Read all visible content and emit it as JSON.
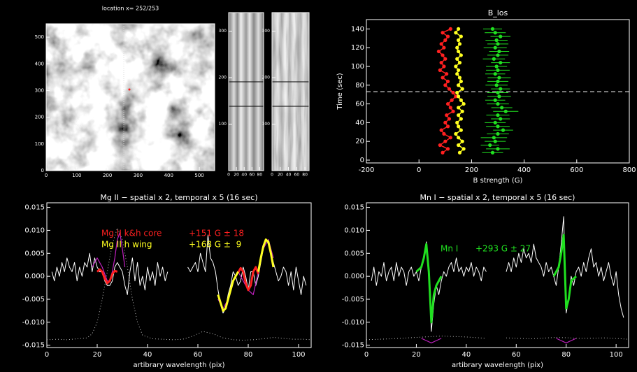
{
  "chart_data": [
    {
      "type": "image",
      "title": "location x= 252/253",
      "xlim": [
        0,
        550
      ],
      "xticks": [
        0,
        100,
        200,
        300,
        400,
        500
      ],
      "ylim": [
        0,
        550
      ],
      "yticks": [
        0,
        100,
        200,
        300,
        400,
        500
      ]
    },
    {
      "type": "image",
      "xlim": [
        0,
        90
      ],
      "xticks": [
        0,
        20,
        40,
        60,
        80
      ],
      "ylim": [
        0,
        340
      ],
      "yticks": [
        100,
        200,
        300
      ]
    },
    {
      "type": "image",
      "xlim": [
        0,
        90
      ],
      "xticks": [
        0,
        20,
        40,
        60,
        80
      ],
      "ylim": [
        0,
        340
      ],
      "yticks": [
        100,
        200,
        300
      ]
    },
    {
      "type": "scatter",
      "title": "B_los",
      "x_label": "B strength (G)",
      "y_label": "Time (sec)",
      "xlim": [
        -200,
        800
      ],
      "xticks": [
        -200,
        0,
        200,
        400,
        600,
        800
      ],
      "ylim": [
        -3,
        150
      ],
      "yticks": [
        0,
        20,
        40,
        60,
        80,
        100,
        120,
        140
      ],
      "marker_time": 73,
      "y": [
        8,
        12,
        16,
        20,
        24,
        28,
        32,
        36,
        40,
        44,
        48,
        52,
        56,
        60,
        64,
        68,
        72,
        76,
        80,
        84,
        88,
        92,
        96,
        100,
        104,
        108,
        112,
        116,
        120,
        124,
        128,
        132,
        136,
        140
      ],
      "series": [
        {
          "color": "#ff2020",
          "line": true,
          "x": [
            90,
            110,
            80,
            100,
            120,
            95,
            85,
            110,
            100,
            115,
            105,
            130,
            120,
            110,
            125,
            140,
            130,
            115,
            100,
            110,
            90,
            105,
            80,
            95,
            85,
            100,
            90,
            75,
            95,
            85,
            100,
            110,
            90,
            120
          ]
        },
        {
          "color": "#ffff20",
          "line": true,
          "x": [
            155,
            170,
            150,
            165,
            150,
            140,
            160,
            150,
            145,
            160,
            150,
            165,
            150,
            170,
            160,
            150,
            145,
            165,
            150,
            160,
            155,
            145,
            150,
            140,
            155,
            145,
            160,
            150,
            145,
            155,
            150,
            160,
            140,
            150
          ]
        },
        {
          "color": "#20e020",
          "line": false,
          "x": [
            280,
            300,
            270,
            290,
            285,
            300,
            320,
            300,
            290,
            310,
            300,
            330,
            315,
            300,
            290,
            305,
            300,
            310,
            295,
            300,
            305,
            290,
            300,
            295,
            310,
            285,
            300,
            305,
            290,
            300,
            295,
            310,
            290,
            280
          ],
          "xerr": [
            40,
            45,
            35,
            40,
            50,
            42,
            38,
            45,
            40,
            36,
            44,
            48,
            40,
            42,
            38,
            45,
            40,
            36,
            42,
            40,
            44,
            38,
            45,
            40,
            36,
            42,
            40,
            38,
            44,
            40,
            42,
            38,
            40,
            36
          ]
        }
      ]
    },
    {
      "type": "line",
      "title": "Mg II − spatial x 2, temporal x 5 (16 sec)",
      "x_label": "artibrary wavelength (pix)",
      "xlim": [
        0,
        105
      ],
      "xticks": [
        0,
        20,
        40,
        60,
        80,
        100
      ],
      "ylim": [
        -0.0155,
        0.016
      ],
      "yticks": [
        -0.015,
        {
          "value": -0.01,
          "label": "-0.010"
        },
        -0.005,
        {
          "value": 0,
          "label": "0.000"
        },
        0.005,
        {
          "value": 0.01,
          "label": "0.010"
        },
        0.015
      ],
      "annotations": [
        {
          "label": "Mg II k&h core",
          "measure": "+151 G ± 18",
          "color": "#ff2020"
        },
        {
          "label": "Mg II h wing",
          "measure": "+168 G ±  9",
          "color": "#ffff20"
        }
      ],
      "series": [
        {
          "color": "#bbbbbb",
          "style": "dotted",
          "width": 1,
          "x": [
            0,
            4,
            8,
            12,
            16,
            18,
            20,
            22,
            24,
            26,
            28,
            30,
            32,
            34,
            36,
            38,
            42,
            46,
            50,
            54,
            58,
            62,
            66,
            70,
            74,
            78,
            82,
            86,
            90,
            94,
            98,
            102,
            105
          ],
          "values": [
            -0.0138,
            -0.0137,
            -0.0138,
            -0.0136,
            -0.0134,
            -0.0125,
            -0.01,
            -0.005,
            0.001,
            0.007,
            0.0105,
            0.008,
            0.002,
            -0.005,
            -0.01,
            -0.0128,
            -0.0136,
            -0.0137,
            -0.0138,
            -0.0137,
            -0.013,
            -0.012,
            -0.0125,
            -0.0134,
            -0.0138,
            -0.0139,
            -0.0138,
            -0.0136,
            -0.0133,
            -0.0135,
            -0.0137,
            -0.0137,
            -0.0138
          ]
        },
        {
          "color": "#ffffff",
          "style": "solid",
          "width": 1,
          "x": [
            2,
            3,
            4,
            5,
            6,
            7,
            8,
            9,
            10,
            11,
            12,
            13,
            14,
            15,
            16,
            17,
            18,
            19,
            20,
            21,
            22,
            23,
            24,
            25,
            26,
            27,
            28,
            29,
            30,
            31,
            32,
            33,
            34,
            35,
            36,
            37,
            38,
            39,
            40,
            41,
            42,
            43,
            44,
            45,
            46,
            47,
            48,
            49,
            56,
            57,
            58,
            59,
            60,
            61,
            62,
            63,
            64,
            65,
            66,
            67,
            68,
            69,
            70,
            71,
            72,
            73,
            74,
            75,
            76,
            77,
            78,
            79,
            80,
            81,
            82,
            83,
            84,
            85,
            86,
            87,
            88,
            89,
            90,
            91,
            92,
            93,
            94,
            95,
            96,
            97,
            98,
            99,
            100,
            101,
            102,
            103
          ],
          "values": [
            0.001,
            -0.001,
            0.002,
            0,
            0.003,
            0.001,
            0.004,
            0.002,
            0.001,
            0.003,
            -0.001,
            0.002,
            0,
            0.003,
            0.002,
            0.005,
            0.001,
            0.004,
            0.002,
            0.001,
            0.001,
            -0.001,
            -0.002,
            -0.002,
            -0.001,
            0.002,
            0.003,
            0.002,
            0.001,
            -0.002,
            -0.004,
            0.001,
            0.004,
            -0.001,
            0.003,
            -0.002,
            0,
            -0.003,
            0.002,
            -0.001,
            0.001,
            -0.002,
            0.003,
            0,
            0.002,
            -0.001,
            0.001,
            null,
            0.002,
            0.001,
            0.002,
            0.003,
            0.001,
            0.005,
            0.003,
            0.001,
            0.009,
            0.004,
            0.003,
            0.001,
            -0.003,
            -0.006,
            -0.008,
            -0.007,
            -0.004,
            -0.002,
            0.001,
            0,
            -0.002,
            -0.001,
            0.002,
            0,
            -0.003,
            0.001,
            0.001,
            -0.002,
            0,
            0.003,
            0.006,
            0.008,
            0.007,
            0.005,
            0.003,
            0.001,
            -0.001,
            0,
            0.002,
            0.001,
            -0.002,
            0.001,
            -0.003,
            0.002,
            -0.001,
            -0.004,
            0,
            -0.002
          ]
        },
        {
          "color": "#c020c0",
          "style": "solid",
          "width": 1.2,
          "x": [
            18,
            20,
            22,
            24,
            25,
            26,
            27,
            28,
            29,
            30,
            31,
            50,
            68,
            70,
            72,
            74,
            76,
            78,
            80,
            82,
            84,
            86,
            88,
            90
          ],
          "values": [
            0.002,
            0.004,
            0.002,
            -0.001,
            -0.001,
            0.001,
            0.004,
            0.008,
            0.0095,
            0.006,
            0.002,
            null,
            -0.005,
            -0.007,
            -0.005,
            -0.001,
            0.001,
            -0.001,
            -0.003,
            -0.004,
            0.001,
            0.006,
            0.008,
            0.004
          ]
        },
        {
          "color": "#ff2020",
          "style": "solid",
          "width": 3,
          "x": [
            20,
            21,
            22,
            23,
            24,
            25,
            26,
            27,
            28,
            50,
            76,
            77,
            78,
            79,
            80,
            81,
            82,
            83,
            84
          ],
          "values": [
            0.001,
            0.0015,
            0.001,
            -0.0005,
            -0.0015,
            -0.001,
            0.0005,
            0.0012,
            0.001,
            null,
            0.0008,
            0.0018,
            0.001,
            -0.0015,
            -0.003,
            -0.002,
            0.001,
            0.002,
            0.0005
          ]
        },
        {
          "color": "#ffff20",
          "style": "solid",
          "width": 3,
          "x": [
            68,
            70,
            71,
            72,
            74,
            76,
            80,
            84,
            85,
            86,
            87,
            88,
            89,
            90
          ],
          "values": [
            -0.004,
            -0.0075,
            -0.007,
            -0.005,
            -0.001,
            0.001,
            null,
            0.001,
            0.004,
            0.0065,
            0.008,
            0.0075,
            0.005,
            0.002
          ]
        }
      ]
    },
    {
      "type": "line",
      "title": "Mn I − spatial x 2, temporal x 5 (16 sec)",
      "x_label": "artibrary wavelength (pix)",
      "xlim": [
        0,
        105
      ],
      "xticks": [
        0,
        20,
        40,
        60,
        80,
        100
      ],
      "ylim": [
        -0.0155,
        0.016
      ],
      "yticks": [
        -0.015,
        {
          "value": -0.01,
          "label": "-0.010"
        },
        -0.005,
        {
          "value": 0,
          "label": "0.000"
        },
        0.005,
        {
          "value": 0.01,
          "label": "0.010"
        },
        0.015
      ],
      "annotations": [
        {
          "label": "Mn I",
          "measure": "+293 G ± 27",
          "color": "#20e020"
        }
      ],
      "series": [
        {
          "color": "#bbbbbb",
          "style": "dotted",
          "width": 1,
          "x": [
            0,
            10,
            20,
            30,
            40,
            48,
            52,
            56,
            66,
            76,
            86,
            96,
            105
          ],
          "values": [
            -0.0138,
            -0.0136,
            -0.0133,
            -0.013,
            -0.0132,
            -0.0135,
            null,
            -0.0134,
            -0.0136,
            -0.0133,
            -0.0135,
            -0.0134,
            -0.0137
          ]
        },
        {
          "color": "#c020c0",
          "style": "solid",
          "width": 1.2,
          "x": [
            22,
            24,
            26,
            28,
            30,
            50,
            76,
            78,
            80,
            82,
            84
          ],
          "values": [
            -0.0135,
            -0.014,
            -0.0145,
            -0.014,
            -0.0135,
            null,
            -0.0135,
            -0.014,
            -0.0145,
            -0.014,
            -0.0135
          ]
        },
        {
          "color": "#ffffff",
          "style": "solid",
          "width": 1,
          "x": [
            2,
            3,
            4,
            5,
            6,
            7,
            8,
            9,
            10,
            11,
            12,
            13,
            14,
            15,
            16,
            17,
            18,
            19,
            20,
            21,
            22,
            23,
            24,
            25,
            26,
            27,
            28,
            29,
            30,
            31,
            32,
            33,
            34,
            35,
            36,
            37,
            38,
            39,
            40,
            41,
            42,
            43,
            44,
            45,
            46,
            47,
            48,
            49,
            56,
            57,
            58,
            59,
            60,
            61,
            62,
            63,
            64,
            65,
            66,
            67,
            68,
            69,
            70,
            71,
            72,
            73,
            74,
            75,
            76,
            77,
            78,
            79,
            80,
            81,
            82,
            83,
            84,
            85,
            86,
            87,
            88,
            89,
            90,
            91,
            92,
            93,
            94,
            95,
            96,
            97,
            98,
            99,
            100,
            101,
            102,
            103
          ],
          "values": [
            -0.001,
            0.002,
            -0.002,
            0.001,
            0,
            0.003,
            -0.001,
            0.001,
            0.002,
            -0.001,
            0.003,
            0,
            0.002,
            0.001,
            -0.002,
            0.001,
            0.002,
            0,
            0.001,
            -0.001,
            0.002,
            0.004,
            0.0075,
            0.002,
            -0.012,
            -0.006,
            -0.002,
            -0.004,
            -0.001,
            0.001,
            0,
            0.002,
            0.003,
            0.001,
            0.004,
            0.001,
            0.002,
            0,
            0.002,
            0.001,
            0.003,
            0,
            0.002,
            0.001,
            -0.001,
            0.002,
            0.001,
            null,
            0.001,
            0.003,
            0.001,
            0.004,
            0.002,
            0.005,
            0.003,
            0.006,
            0.004,
            0.005,
            0.003,
            0.007,
            0.004,
            0.003,
            0.002,
            0,
            0.003,
            0.001,
            0.002,
            0,
            -0.002,
            0.002,
            0.007,
            0.013,
            -0.008,
            -0.005,
            0,
            -0.002,
            0.001,
            0.002,
            0,
            0.003,
            0.001,
            0.004,
            0.006,
            0.002,
            0.003,
            0,
            0.002,
            -0.001,
            0.001,
            0.003,
            0,
            -0.002,
            0.001,
            -0.004,
            -0.007,
            -0.009
          ]
        },
        {
          "color": "#20e020",
          "style": "solid",
          "width": 3,
          "x": [
            20,
            22,
            23,
            24,
            25,
            26,
            27,
            28,
            30,
            50,
            75,
            77,
            78,
            79,
            80,
            81,
            82,
            84
          ],
          "values": [
            0.001,
            0.002,
            0.004,
            0.007,
            0.001,
            -0.01,
            -0.004,
            -0.002,
            0,
            null,
            0,
            0.002,
            0.005,
            0.009,
            -0.007,
            -0.005,
            -0.001,
            0
          ]
        }
      ]
    }
  ]
}
